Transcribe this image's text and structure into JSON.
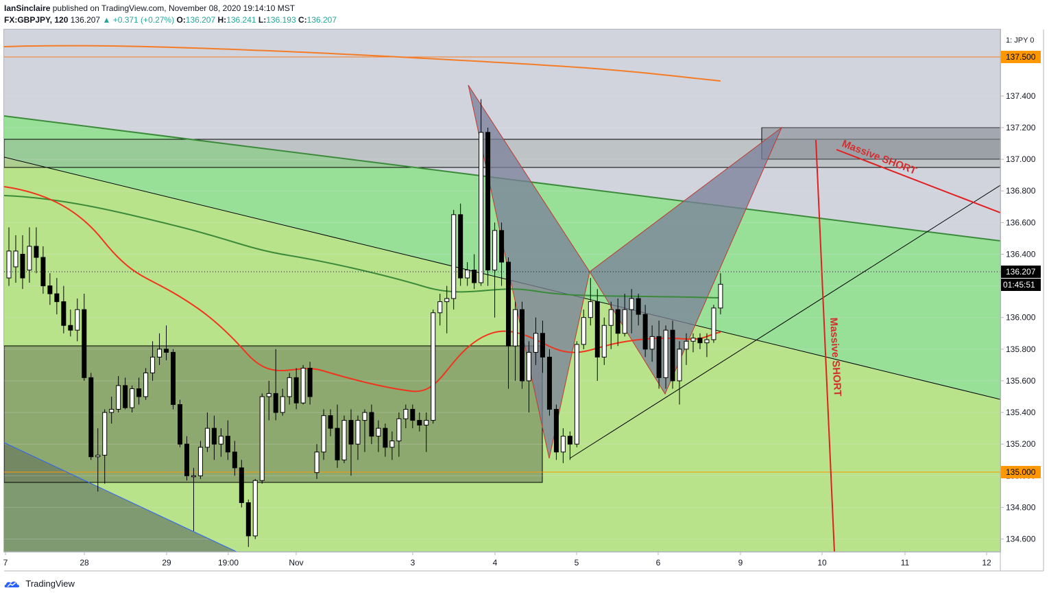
{
  "header": {
    "author": "IanSinclaire",
    "published_text": "published on TradingView.com, November 08, 2020 19:14:10 MST",
    "symbol": "FX:GBPJPY, 120",
    "last": "136.207",
    "change": "+0.371 (+0.27%)",
    "o_label": "O:",
    "o": "136.207",
    "h_label": "H:",
    "h": "136.241",
    "l_label": "L:",
    "l": "136.193",
    "c_label": "C:",
    "c": "136.207",
    "change_color": "#26a69a"
  },
  "footer": {
    "brand": "TradingView"
  },
  "axis": {
    "currency": "JPY",
    "corner": "1: JPY 0",
    "price_ticks": [
      "137.400",
      "137.200",
      "137.000",
      "136.800",
      "136.600",
      "136.400",
      "136.200",
      "136.000",
      "135.800",
      "135.600",
      "135.400",
      "135.200",
      "135.000",
      "134.800",
      "134.600"
    ],
    "date_ticks": [
      "7",
      "28",
      "29",
      "19:00",
      "Nov",
      "3",
      "4",
      "5",
      "6",
      "9",
      "10",
      "11",
      "12"
    ],
    "price_range": [
      134.52,
      137.82
    ]
  },
  "price_labels": {
    "resistance": "137.500",
    "current": "136.207",
    "countdown": "01:45:51",
    "support": "135.000"
  },
  "annotations": {
    "short_1": "Massive SHORT",
    "short_2": "Massive SHORT"
  },
  "colors": {
    "up": "#ffffff",
    "down": "#000000",
    "ma_red": "#f0341c",
    "ma_green": "#3a8a3a",
    "ma_orange": "#f57c24",
    "zone_green": "#98df98",
    "zone_lime": "#b9e38a",
    "pattern": "#7a7f9a",
    "label_orange": "#ff9800",
    "label_black": "#000000"
  },
  "chart_data": {
    "type": "candlestick",
    "timeframe": "120",
    "ylim": [
      134.52,
      137.82
    ],
    "candles": [
      {
        "o": 136.25,
        "h": 136.57,
        "l": 136.2,
        "c": 136.42
      },
      {
        "o": 136.32,
        "h": 136.52,
        "l": 136.22,
        "c": 136.42
      },
      {
        "o": 136.4,
        "h": 136.52,
        "l": 136.18,
        "c": 136.25
      },
      {
        "o": 136.3,
        "h": 136.57,
        "l": 136.22,
        "c": 136.45
      },
      {
        "o": 136.45,
        "h": 136.57,
        "l": 136.28,
        "c": 136.38
      },
      {
        "o": 136.38,
        "h": 136.45,
        "l": 136.15,
        "c": 136.2
      },
      {
        "o": 136.2,
        "h": 136.28,
        "l": 136.08,
        "c": 136.15
      },
      {
        "o": 136.15,
        "h": 136.25,
        "l": 136.02,
        "c": 136.1
      },
      {
        "o": 136.1,
        "h": 136.2,
        "l": 135.9,
        "c": 135.95
      },
      {
        "o": 135.95,
        "h": 136.05,
        "l": 135.88,
        "c": 135.92
      },
      {
        "o": 135.92,
        "h": 136.12,
        "l": 135.85,
        "c": 136.05
      },
      {
        "o": 136.05,
        "h": 136.15,
        "l": 135.6,
        "c": 135.62
      },
      {
        "o": 135.62,
        "h": 135.65,
        "l": 135.1,
        "c": 135.12
      },
      {
        "o": 135.12,
        "h": 135.3,
        "l": 134.9,
        "c": 135.13
      },
      {
        "o": 135.13,
        "h": 135.42,
        "l": 134.95,
        "c": 135.4
      },
      {
        "o": 135.4,
        "h": 135.5,
        "l": 135.33,
        "c": 135.42
      },
      {
        "o": 135.42,
        "h": 135.63,
        "l": 135.4,
        "c": 135.57
      },
      {
        "o": 135.57,
        "h": 135.62,
        "l": 135.42,
        "c": 135.43
      },
      {
        "o": 135.43,
        "h": 135.57,
        "l": 135.4,
        "c": 135.55
      },
      {
        "o": 135.55,
        "h": 135.62,
        "l": 135.45,
        "c": 135.5
      },
      {
        "o": 135.5,
        "h": 135.68,
        "l": 135.48,
        "c": 135.65
      },
      {
        "o": 135.65,
        "h": 135.85,
        "l": 135.6,
        "c": 135.75
      },
      {
        "o": 135.75,
        "h": 135.9,
        "l": 135.7,
        "c": 135.8
      },
      {
        "o": 135.8,
        "h": 135.95,
        "l": 135.73,
        "c": 135.78
      },
      {
        "o": 135.78,
        "h": 135.8,
        "l": 135.42,
        "c": 135.45
      },
      {
        "o": 135.45,
        "h": 135.48,
        "l": 135.18,
        "c": 135.2
      },
      {
        "o": 135.2,
        "h": 135.25,
        "l": 134.97,
        "c": 135.0
      },
      {
        "o": 135.0,
        "h": 135.05,
        "l": 134.65,
        "c": 135.0
      },
      {
        "o": 135.0,
        "h": 135.22,
        "l": 134.98,
        "c": 135.18
      },
      {
        "o": 135.18,
        "h": 135.4,
        "l": 135.15,
        "c": 135.3
      },
      {
        "o": 135.3,
        "h": 135.38,
        "l": 135.1,
        "c": 135.2
      },
      {
        "o": 135.2,
        "h": 135.3,
        "l": 135.12,
        "c": 135.25
      },
      {
        "o": 135.25,
        "h": 135.35,
        "l": 135.1,
        "c": 135.15
      },
      {
        "o": 135.15,
        "h": 135.22,
        "l": 135.0,
        "c": 135.05
      },
      {
        "o": 135.05,
        "h": 135.1,
        "l": 134.8,
        "c": 134.83
      },
      {
        "o": 134.83,
        "h": 134.85,
        "l": 134.55,
        "c": 134.62
      },
      {
        "o": 134.62,
        "h": 134.98,
        "l": 134.6,
        "c": 134.97
      },
      {
        "o": 134.97,
        "h": 135.52,
        "l": 134.95,
        "c": 135.5
      },
      {
        "o": 135.5,
        "h": 135.6,
        "l": 135.35,
        "c": 135.52
      },
      {
        "o": 135.52,
        "h": 135.8,
        "l": 135.35,
        "c": 135.4
      },
      {
        "o": 135.4,
        "h": 135.55,
        "l": 135.38,
        "c": 135.5
      },
      {
        "o": 135.5,
        "h": 135.65,
        "l": 135.45,
        "c": 135.62
      },
      {
        "o": 135.62,
        "h": 135.68,
        "l": 135.42,
        "c": 135.46
      },
      {
        "o": 135.46,
        "h": 135.7,
        "l": 135.45,
        "c": 135.68
      },
      {
        "o": 135.68,
        "h": 135.72,
        "l": 135.45,
        "c": 135.5
      },
      {
        "o": 135.02,
        "h": 135.2,
        "l": 134.98,
        "c": 135.15
      },
      {
        "o": 135.15,
        "h": 135.42,
        "l": 135.1,
        "c": 135.38
      },
      {
        "o": 135.38,
        "h": 135.42,
        "l": 135.25,
        "c": 135.3
      },
      {
        "o": 135.3,
        "h": 135.45,
        "l": 135.05,
        "c": 135.1
      },
      {
        "o": 135.1,
        "h": 135.38,
        "l": 135.08,
        "c": 135.35
      },
      {
        "o": 135.35,
        "h": 135.42,
        "l": 135.0,
        "c": 135.2
      },
      {
        "o": 135.2,
        "h": 135.38,
        "l": 135.1,
        "c": 135.35
      },
      {
        "o": 135.35,
        "h": 135.42,
        "l": 135.15,
        "c": 135.4
      },
      {
        "o": 135.4,
        "h": 135.45,
        "l": 135.2,
        "c": 135.25
      },
      {
        "o": 135.25,
        "h": 135.35,
        "l": 135.15,
        "c": 135.3
      },
      {
        "o": 135.3,
        "h": 135.33,
        "l": 135.12,
        "c": 135.18
      },
      {
        "o": 135.18,
        "h": 135.28,
        "l": 135.1,
        "c": 135.22
      },
      {
        "o": 135.22,
        "h": 135.4,
        "l": 135.12,
        "c": 135.36
      },
      {
        "o": 135.36,
        "h": 135.45,
        "l": 135.3,
        "c": 135.42
      },
      {
        "o": 135.42,
        "h": 135.45,
        "l": 135.3,
        "c": 135.35
      },
      {
        "o": 135.35,
        "h": 135.4,
        "l": 135.28,
        "c": 135.32
      },
      {
        "o": 135.32,
        "h": 135.4,
        "l": 135.15,
        "c": 135.35
      },
      {
        "o": 135.35,
        "h": 136.05,
        "l": 135.33,
        "c": 136.03
      },
      {
        "o": 136.03,
        "h": 136.15,
        "l": 135.95,
        "c": 136.1
      },
      {
        "o": 136.1,
        "h": 136.2,
        "l": 135.9,
        "c": 136.12
      },
      {
        "o": 136.12,
        "h": 136.68,
        "l": 136.05,
        "c": 136.65
      },
      {
        "o": 136.65,
        "h": 136.72,
        "l": 136.2,
        "c": 136.25
      },
      {
        "o": 136.25,
        "h": 136.35,
        "l": 136.2,
        "c": 136.3
      },
      {
        "o": 136.3,
        "h": 136.4,
        "l": 136.18,
        "c": 136.22
      },
      {
        "o": 136.22,
        "h": 137.38,
        "l": 136.2,
        "c": 137.17
      },
      {
        "o": 137.17,
        "h": 137.2,
        "l": 136.2,
        "c": 136.3
      },
      {
        "o": 136.3,
        "h": 136.6,
        "l": 136.0,
        "c": 136.55
      },
      {
        "o": 136.55,
        "h": 136.6,
        "l": 136.2,
        "c": 136.35
      },
      {
        "o": 136.35,
        "h": 136.38,
        "l": 135.55,
        "c": 135.82
      },
      {
        "o": 135.82,
        "h": 136.1,
        "l": 135.6,
        "c": 136.05
      },
      {
        "o": 136.05,
        "h": 136.1,
        "l": 135.55,
        "c": 135.6
      },
      {
        "o": 135.6,
        "h": 135.85,
        "l": 135.4,
        "c": 135.78
      },
      {
        "o": 135.78,
        "h": 136.0,
        "l": 135.7,
        "c": 135.9
      },
      {
        "o": 135.9,
        "h": 135.98,
        "l": 135.65,
        "c": 135.75
      },
      {
        "o": 135.75,
        "h": 135.8,
        "l": 135.38,
        "c": 135.42
      },
      {
        "o": 135.42,
        "h": 135.45,
        "l": 135.1,
        "c": 135.15
      },
      {
        "o": 135.15,
        "h": 135.3,
        "l": 135.08,
        "c": 135.25
      },
      {
        "o": 135.25,
        "h": 135.28,
        "l": 135.1,
        "c": 135.2
      },
      {
        "o": 135.2,
        "h": 135.85,
        "l": 135.18,
        "c": 135.83
      },
      {
        "o": 135.83,
        "h": 136.05,
        "l": 135.8,
        "c": 136.0
      },
      {
        "o": 136.0,
        "h": 136.25,
        "l": 135.95,
        "c": 136.1
      },
      {
        "o": 136.1,
        "h": 136.18,
        "l": 135.6,
        "c": 135.75
      },
      {
        "o": 135.75,
        "h": 136.0,
        "l": 135.7,
        "c": 135.95
      },
      {
        "o": 135.95,
        "h": 136.1,
        "l": 135.8,
        "c": 136.05
      },
      {
        "o": 136.05,
        "h": 136.12,
        "l": 135.82,
        "c": 135.9
      },
      {
        "o": 135.9,
        "h": 136.15,
        "l": 135.88,
        "c": 136.05
      },
      {
        "o": 136.05,
        "h": 136.18,
        "l": 135.9,
        "c": 136.12
      },
      {
        "o": 136.12,
        "h": 136.15,
        "l": 135.95,
        "c": 136.02
      },
      {
        "o": 136.02,
        "h": 136.08,
        "l": 135.75,
        "c": 135.8
      },
      {
        "o": 135.8,
        "h": 135.95,
        "l": 135.72,
        "c": 135.88
      },
      {
        "o": 135.88,
        "h": 135.98,
        "l": 135.55,
        "c": 135.62
      },
      {
        "o": 135.62,
        "h": 135.95,
        "l": 135.55,
        "c": 135.92
      },
      {
        "o": 135.92,
        "h": 135.98,
        "l": 135.55,
        "c": 135.6
      },
      {
        "o": 135.6,
        "h": 135.85,
        "l": 135.45,
        "c": 135.8
      },
      {
        "o": 135.8,
        "h": 135.9,
        "l": 135.7,
        "c": 135.85
      },
      {
        "o": 135.85,
        "h": 135.9,
        "l": 135.78,
        "c": 135.87
      },
      {
        "o": 135.87,
        "h": 135.9,
        "l": 135.8,
        "c": 135.84
      },
      {
        "o": 135.84,
        "h": 135.9,
        "l": 135.75,
        "c": 135.86
      },
      {
        "o": 135.86,
        "h": 136.08,
        "l": 135.84,
        "c": 136.06
      },
      {
        "o": 136.06,
        "h": 136.28,
        "l": 136.02,
        "c": 136.21
      }
    ]
  }
}
